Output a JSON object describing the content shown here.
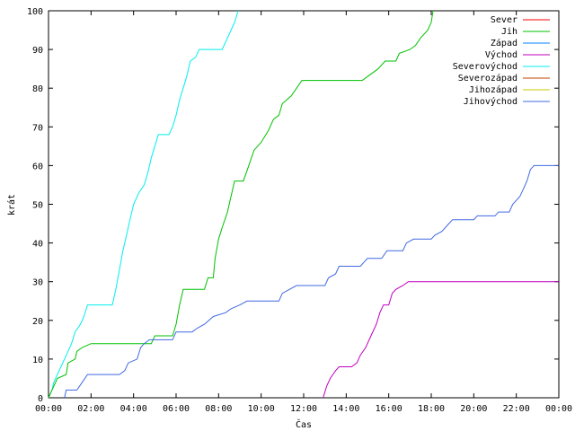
{
  "chart_data": {
    "type": "line",
    "title": "",
    "xlabel": "Čas",
    "ylabel": "krát",
    "xlim": [
      "00:00",
      "24:00"
    ],
    "ylim": [
      0,
      100
    ],
    "x_tick_labels": [
      "00:00",
      "02:00",
      "04:00",
      "06:00",
      "08:00",
      "10:00",
      "12:00",
      "14:00",
      "16:00",
      "18:00",
      "20:00",
      "22:00",
      "00:00"
    ],
    "y_tick_labels": [
      "0",
      "10",
      "20",
      "30",
      "40",
      "50",
      "60",
      "70",
      "80",
      "90",
      "100"
    ],
    "grid": false,
    "legend_position": "top-right",
    "legend": [
      {
        "name": "Sever",
        "color": "#ff0000"
      },
      {
        "name": "Jih",
        "color": "#00c000"
      },
      {
        "name": "Západ",
        "color": "#0080ff"
      },
      {
        "name": "Východ",
        "color": "#c000c0"
      },
      {
        "name": "Severovýchod",
        "color": "#00eeee"
      },
      {
        "name": "Severozápad",
        "color": "#c04000"
      },
      {
        "name": "Jihozápad",
        "color": "#c8c800"
      },
      {
        "name": "Jihovýchod",
        "color": "#4169e1"
      }
    ],
    "series": [
      {
        "name": "Severovýchod",
        "color": "#00eeee",
        "points": [
          [
            "00:00",
            0
          ],
          [
            "00:10",
            2
          ],
          [
            "00:15",
            4
          ],
          [
            "00:25",
            6
          ],
          [
            "00:35",
            8
          ],
          [
            "00:45",
            10
          ],
          [
            "00:55",
            12
          ],
          [
            "01:05",
            14
          ],
          [
            "01:15",
            17
          ],
          [
            "01:30",
            19
          ],
          [
            "01:40",
            21
          ],
          [
            "01:50",
            24
          ],
          [
            "03:00",
            24
          ],
          [
            "03:10",
            28
          ],
          [
            "03:20",
            33
          ],
          [
            "03:30",
            38
          ],
          [
            "03:40",
            42
          ],
          [
            "03:50",
            46
          ],
          [
            "04:00",
            50
          ],
          [
            "04:15",
            53
          ],
          [
            "04:30",
            55
          ],
          [
            "04:40",
            58
          ],
          [
            "04:50",
            62
          ],
          [
            "05:00",
            65
          ],
          [
            "05:10",
            68
          ],
          [
            "05:40",
            68
          ],
          [
            "05:50",
            70
          ],
          [
            "06:00",
            73
          ],
          [
            "06:10",
            77
          ],
          [
            "06:20",
            80
          ],
          [
            "06:30",
            83
          ],
          [
            "06:40",
            87
          ],
          [
            "06:55",
            88
          ],
          [
            "07:05",
            90
          ],
          [
            "08:10",
            90
          ],
          [
            "08:30",
            94
          ],
          [
            "08:45",
            97
          ],
          [
            "08:55",
            100
          ]
        ]
      },
      {
        "name": "Jih",
        "color": "#00c000",
        "points": [
          [
            "00:00",
            0
          ],
          [
            "00:15",
            3
          ],
          [
            "00:25",
            5
          ],
          [
            "00:50",
            6
          ],
          [
            "00:55",
            9
          ],
          [
            "01:15",
            10
          ],
          [
            "01:20",
            12
          ],
          [
            "01:35",
            13
          ],
          [
            "02:00",
            14
          ],
          [
            "04:50",
            14
          ],
          [
            "05:00",
            16
          ],
          [
            "05:50",
            16
          ],
          [
            "06:00",
            19
          ],
          [
            "06:10",
            24
          ],
          [
            "06:20",
            28
          ],
          [
            "07:20",
            28
          ],
          [
            "07:30",
            31
          ],
          [
            "07:45",
            31
          ],
          [
            "07:50",
            36
          ],
          [
            "08:00",
            41
          ],
          [
            "08:10",
            44
          ],
          [
            "08:25",
            48
          ],
          [
            "08:35",
            52
          ],
          [
            "08:45",
            56
          ],
          [
            "09:10",
            56
          ],
          [
            "09:25",
            60
          ],
          [
            "09:40",
            64
          ],
          [
            "10:00",
            66
          ],
          [
            "10:20",
            69
          ],
          [
            "10:35",
            72
          ],
          [
            "10:50",
            73
          ],
          [
            "11:00",
            76
          ],
          [
            "11:25",
            78
          ],
          [
            "11:40",
            80
          ],
          [
            "11:55",
            82
          ],
          [
            "14:45",
            82
          ],
          [
            "15:00",
            83
          ],
          [
            "15:30",
            85
          ],
          [
            "15:50",
            87
          ],
          [
            "16:20",
            87
          ],
          [
            "16:30",
            89
          ],
          [
            "17:00",
            90
          ],
          [
            "17:15",
            91
          ],
          [
            "17:30",
            93
          ],
          [
            "17:50",
            95
          ],
          [
            "18:00",
            97
          ],
          [
            "18:05",
            100
          ]
        ]
      },
      {
        "name": "Východ",
        "color": "#c000c0",
        "points": [
          [
            "12:55",
            0
          ],
          [
            "13:05",
            3
          ],
          [
            "13:15",
            5
          ],
          [
            "13:30",
            7
          ],
          [
            "13:40",
            8
          ],
          [
            "14:15",
            8
          ],
          [
            "14:30",
            9
          ],
          [
            "14:40",
            11
          ],
          [
            "14:55",
            13
          ],
          [
            "15:10",
            16
          ],
          [
            "15:25",
            19
          ],
          [
            "15:35",
            22
          ],
          [
            "15:45",
            24
          ],
          [
            "16:00",
            24
          ],
          [
            "16:10",
            27
          ],
          [
            "16:20",
            28
          ],
          [
            "16:40",
            29
          ],
          [
            "16:55",
            30
          ],
          [
            "23:59",
            30
          ]
        ]
      },
      {
        "name": "Jihovýchod",
        "color": "#4169e1",
        "points": [
          [
            "00:45",
            0
          ],
          [
            "00:50",
            2
          ],
          [
            "01:20",
            2
          ],
          [
            "01:35",
            4
          ],
          [
            "01:50",
            6
          ],
          [
            "03:20",
            6
          ],
          [
            "03:35",
            7
          ],
          [
            "03:45",
            9
          ],
          [
            "04:10",
            10
          ],
          [
            "04:20",
            13
          ],
          [
            "04:30",
            14
          ],
          [
            "04:45",
            15
          ],
          [
            "05:50",
            15
          ],
          [
            "06:00",
            17
          ],
          [
            "06:45",
            17
          ],
          [
            "07:00",
            18
          ],
          [
            "07:20",
            19
          ],
          [
            "07:45",
            21
          ],
          [
            "08:20",
            22
          ],
          [
            "08:35",
            23
          ],
          [
            "09:00",
            24
          ],
          [
            "09:20",
            25
          ],
          [
            "10:50",
            25
          ],
          [
            "11:00",
            27
          ],
          [
            "11:20",
            28
          ],
          [
            "11:40",
            29
          ],
          [
            "13:00",
            29
          ],
          [
            "13:10",
            31
          ],
          [
            "13:30",
            32
          ],
          [
            "13:40",
            34
          ],
          [
            "14:40",
            34
          ],
          [
            "14:50",
            35
          ],
          [
            "15:00",
            36
          ],
          [
            "15:40",
            36
          ],
          [
            "15:55",
            38
          ],
          [
            "16:40",
            38
          ],
          [
            "16:50",
            40
          ],
          [
            "17:10",
            41
          ],
          [
            "18:00",
            41
          ],
          [
            "18:10",
            42
          ],
          [
            "18:30",
            43
          ],
          [
            "18:50",
            45
          ],
          [
            "19:00",
            46
          ],
          [
            "20:00",
            46
          ],
          [
            "20:10",
            47
          ],
          [
            "21:00",
            47
          ],
          [
            "21:10",
            48
          ],
          [
            "21:40",
            48
          ],
          [
            "21:50",
            50
          ],
          [
            "22:10",
            52
          ],
          [
            "22:20",
            54
          ],
          [
            "22:30",
            56
          ],
          [
            "22:40",
            59
          ],
          [
            "22:50",
            60
          ],
          [
            "23:59",
            60
          ]
        ]
      }
    ]
  }
}
